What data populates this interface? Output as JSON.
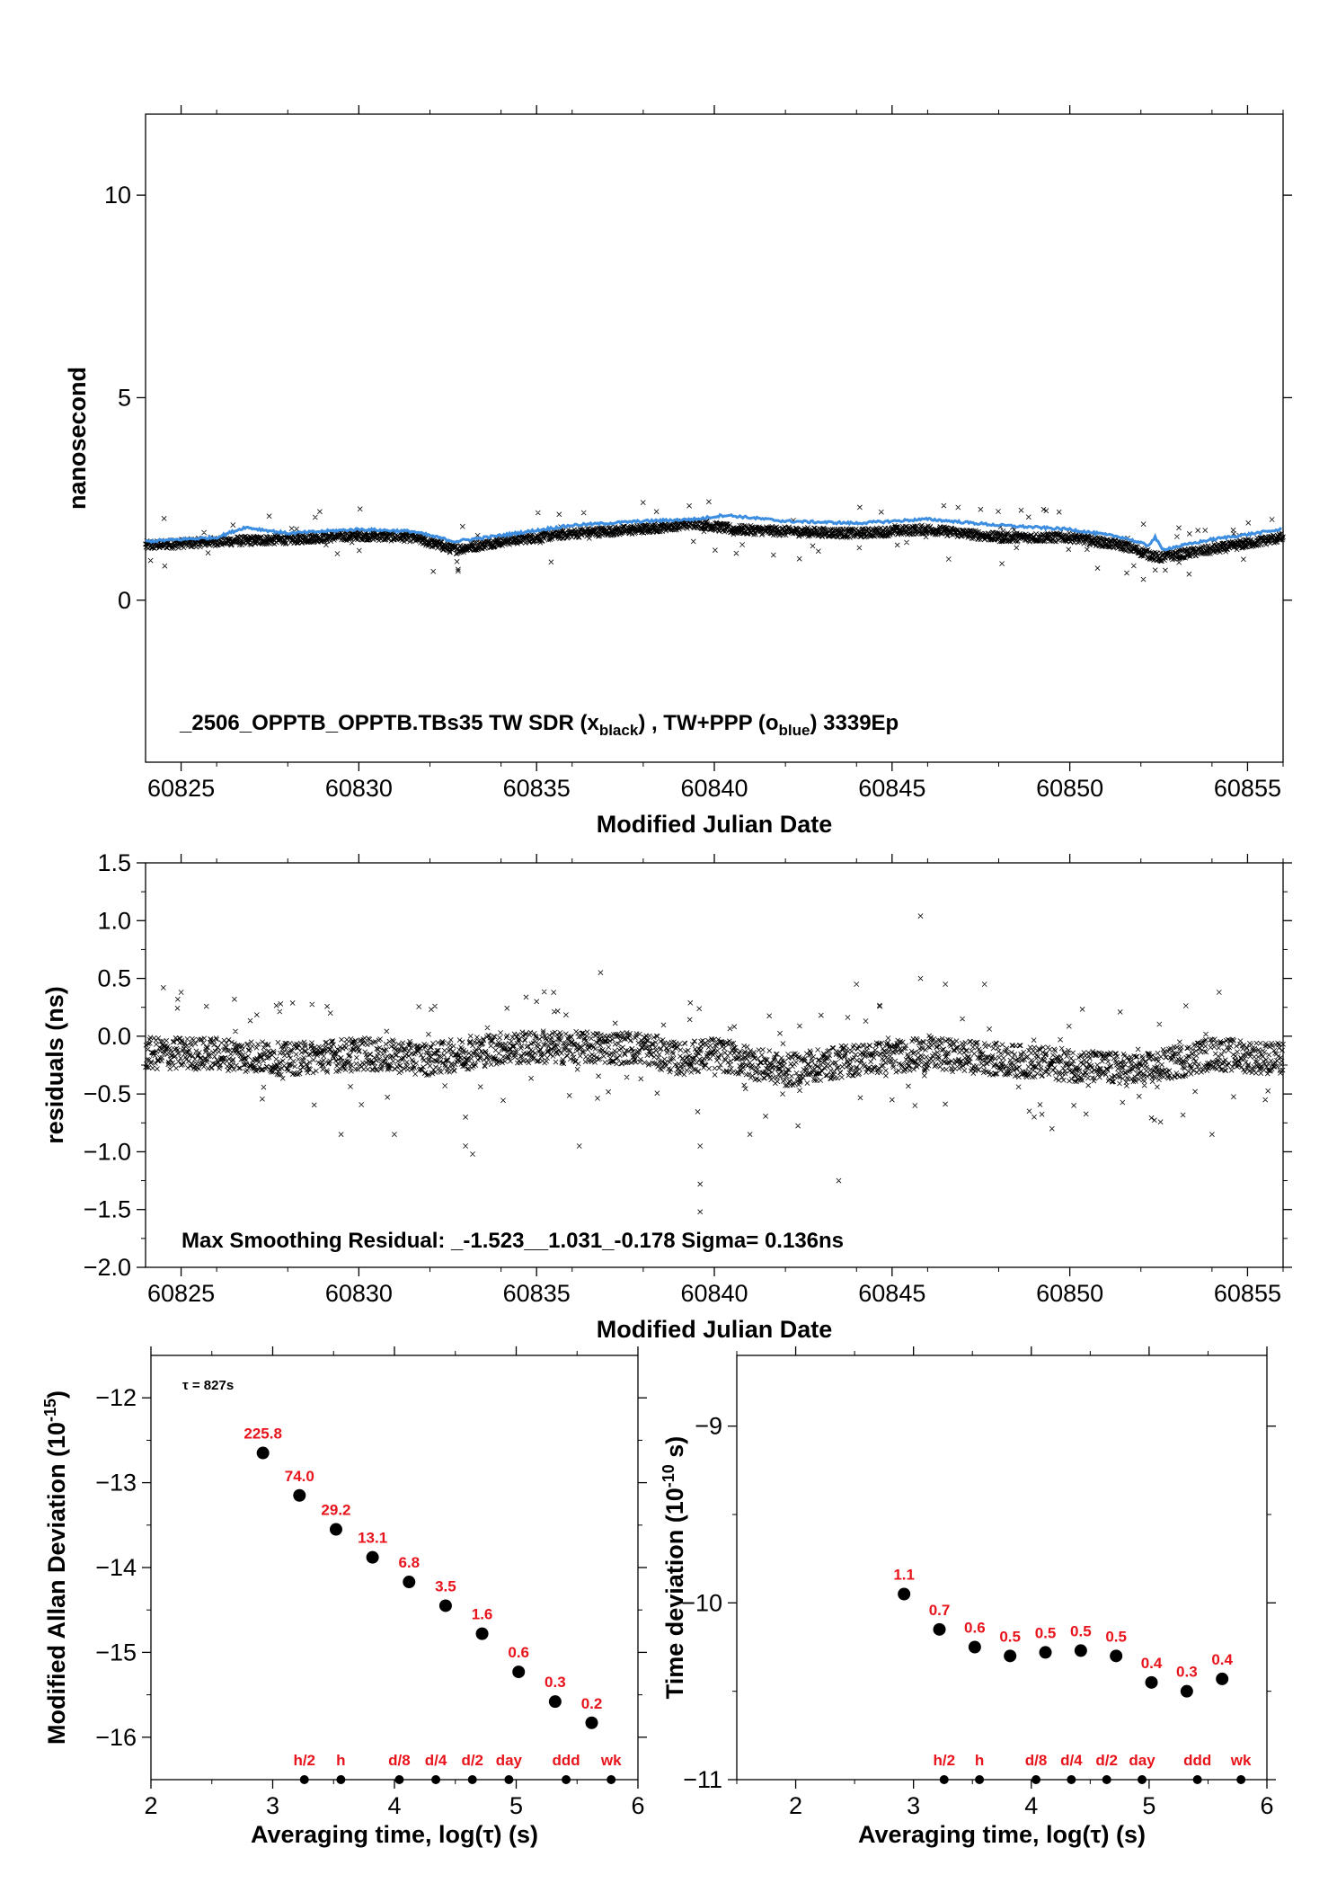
{
  "chart_data": [
    {
      "type": "scatter",
      "xlabel": "Modified Julian Date",
      "ylabel": "nanosecond",
      "xlim": [
        60824,
        60856
      ],
      "ylim": [
        -4,
        12
      ],
      "xticks": [
        60825,
        60830,
        60835,
        60840,
        60845,
        60850,
        60855
      ],
      "yticks": [
        0,
        5,
        10
      ],
      "annotation": {
        "prefix": "_2506_OPPTB_OPPTB.TBs35     TW SDR (x",
        "sub1": "black",
        "mid": ") ,  TW+PPP (o",
        "sub2": "blue",
        "suffix": ")  3339Ep"
      },
      "series": [
        {
          "marker": "x",
          "color": "#000000",
          "trend": [
            [
              60824,
              1.35
            ],
            [
              60826,
              1.45
            ],
            [
              60828,
              1.5
            ],
            [
              60830,
              1.6
            ],
            [
              60831.5,
              1.55
            ],
            [
              60832.7,
              1.25
            ],
            [
              60834,
              1.45
            ],
            [
              60836,
              1.65
            ],
            [
              60838,
              1.75
            ],
            [
              60839.5,
              1.9
            ],
            [
              60840.5,
              1.75
            ],
            [
              60842,
              1.7
            ],
            [
              60844,
              1.65
            ],
            [
              60846,
              1.75
            ],
            [
              60848,
              1.55
            ],
            [
              60850,
              1.55
            ],
            [
              60851.5,
              1.35
            ],
            [
              60852.5,
              1.05
            ],
            [
              60854,
              1.25
            ],
            [
              60856,
              1.55
            ]
          ]
        },
        {
          "marker": "line",
          "color": "#3d8ee0",
          "trend": [
            [
              60824,
              1.45
            ],
            [
              60826,
              1.55
            ],
            [
              60826.8,
              1.8
            ],
            [
              60828,
              1.65
            ],
            [
              60830,
              1.75
            ],
            [
              60831.5,
              1.7
            ],
            [
              60832.7,
              1.45
            ],
            [
              60834,
              1.6
            ],
            [
              60836,
              1.85
            ],
            [
              60838,
              1.95
            ],
            [
              60839.5,
              2.0
            ],
            [
              60840.3,
              2.1
            ],
            [
              60842,
              1.95
            ],
            [
              60844,
              1.9
            ],
            [
              60846,
              2.0
            ],
            [
              60848,
              1.85
            ],
            [
              60850,
              1.75
            ],
            [
              60851.5,
              1.55
            ],
            [
              60852.2,
              1.35
            ],
            [
              60852.4,
              1.55
            ],
            [
              60852.6,
              1.25
            ],
            [
              60854,
              1.5
            ],
            [
              60856,
              1.75
            ]
          ]
        }
      ]
    },
    {
      "type": "scatter",
      "xlabel": "Modified Julian Date",
      "ylabel": "residuals (ns)",
      "xlim": [
        60824,
        60856
      ],
      "ylim": [
        -2.0,
        1.5
      ],
      "xticks": [
        60825,
        60830,
        60835,
        60840,
        60845,
        60850,
        60855
      ],
      "yticks": [
        1.5,
        1.0,
        0.5,
        0.0,
        -0.5,
        -1.0,
        -1.5,
        -2.0
      ],
      "yticklabels": [
        "1.5",
        "1.0",
        "0.5",
        "0.0",
        "−0.5",
        "−1.0",
        "−1.5",
        "−2.0"
      ],
      "annotation": "Max Smoothing Residual: _-1.523__1.031_-0.178  Sigma= 0.136ns",
      "trend": [
        [
          60824,
          -0.15
        ],
        [
          60826,
          -0.15
        ],
        [
          60828,
          -0.2
        ],
        [
          60830,
          -0.15
        ],
        [
          60832,
          -0.2
        ],
        [
          60834,
          -0.1
        ],
        [
          60836,
          -0.1
        ],
        [
          60838,
          -0.1
        ],
        [
          60839,
          -0.2
        ],
        [
          60840,
          -0.15
        ],
        [
          60842,
          -0.3
        ],
        [
          60844,
          -0.2
        ],
        [
          60846,
          -0.15
        ],
        [
          60848,
          -0.2
        ],
        [
          60850,
          -0.25
        ],
        [
          60852,
          -0.3
        ],
        [
          60854,
          -0.15
        ],
        [
          60856,
          -0.2
        ]
      ],
      "outliers": [
        [
          60824.5,
          0.42
        ],
        [
          60825,
          0.38
        ],
        [
          60826.5,
          0.32
        ],
        [
          60827.8,
          0.28
        ],
        [
          60829.2,
          0.2
        ],
        [
          60833.2,
          -1.02
        ],
        [
          60833,
          -0.95
        ],
        [
          60835,
          0.3
        ],
        [
          60836.2,
          -0.95
        ],
        [
          60836.8,
          0.55
        ],
        [
          60839.6,
          -1.28
        ],
        [
          60839.6,
          -1.52
        ],
        [
          60839.6,
          -0.95
        ],
        [
          60843.5,
          -1.25
        ],
        [
          60845.8,
          1.04
        ],
        [
          60845.8,
          0.5
        ],
        [
          60846.5,
          0.45
        ],
        [
          60847.6,
          0.45
        ],
        [
          60845,
          -0.55
        ],
        [
          60844,
          0.45
        ],
        [
          60849.5,
          -0.8
        ],
        [
          60854.2,
          0.38
        ],
        [
          60854,
          -0.85
        ],
        [
          60855.5,
          -0.55
        ],
        [
          60829.5,
          -0.85
        ],
        [
          60831,
          -0.85
        ],
        [
          60833,
          -0.7
        ],
        [
          60841,
          -0.85
        ]
      ]
    },
    {
      "type": "scatter",
      "xlabel": "Averaging time, log(τ) (s)",
      "ylabel": "Modified Allan Deviation (10",
      "ylabel_sup": "-15",
      "ylabel_end": ")",
      "xlim": [
        2,
        6
      ],
      "ylim": [
        -16.5,
        -11.5
      ],
      "xticks": [
        2,
        3,
        4,
        5,
        6
      ],
      "yticks": [
        -12,
        -13,
        -14,
        -15,
        -16
      ],
      "yticklabels": [
        "−12",
        "−13",
        "−14",
        "−15",
        "−16"
      ],
      "tau_label": "τ = 827s",
      "x": [
        2.92,
        3.22,
        3.52,
        3.82,
        4.12,
        4.42,
        4.72,
        5.02,
        5.32,
        5.62
      ],
      "y": [
        -12.65,
        -13.15,
        -13.55,
        -13.88,
        -14.17,
        -14.45,
        -14.78,
        -15.23,
        -15.58,
        -15.83
      ],
      "labels": [
        "225.8",
        "74.0",
        "29.2",
        "13.1",
        "6.8",
        "3.5",
        "1.6",
        "0.6",
        "0.3",
        "0.2"
      ],
      "markers": [
        {
          "label": "h/2",
          "x": 3.26
        },
        {
          "label": "h",
          "x": 3.56
        },
        {
          "label": "d/8",
          "x": 4.04
        },
        {
          "label": "d/4",
          "x": 4.34
        },
        {
          "label": "d/2",
          "x": 4.64
        },
        {
          "label": "day",
          "x": 4.94
        },
        {
          "label": "ddd",
          "x": 5.41
        },
        {
          "label": "wk",
          "x": 5.78
        }
      ]
    },
    {
      "type": "scatter",
      "xlabel": "Averaging time, log(τ) (s)",
      "ylabel": "Time deviation (10",
      "ylabel_sup": "-10",
      "ylabel_end": " s)",
      "xlim": [
        1.5,
        6
      ],
      "ylim": [
        -11,
        -8.6
      ],
      "xticks": [
        2,
        3,
        4,
        5,
        6
      ],
      "yticks": [
        -9,
        -10,
        -11
      ],
      "yticklabels": [
        "−9",
        "−10",
        "−11"
      ],
      "x": [
        2.92,
        3.22,
        3.52,
        3.82,
        4.12,
        4.42,
        4.72,
        5.02,
        5.32,
        5.62
      ],
      "y": [
        -9.95,
        -10.15,
        -10.25,
        -10.3,
        -10.28,
        -10.27,
        -10.3,
        -10.45,
        -10.5,
        -10.43
      ],
      "labels": [
        "1.1",
        "0.7",
        "0.6",
        "0.5",
        "0.5",
        "0.5",
        "0.5",
        "0.4",
        "0.3",
        "0.4"
      ],
      "markers": [
        {
          "label": "h/2",
          "x": 3.26
        },
        {
          "label": "h",
          "x": 3.56
        },
        {
          "label": "d/8",
          "x": 4.04
        },
        {
          "label": "d/4",
          "x": 4.34
        },
        {
          "label": "d/2",
          "x": 4.64
        },
        {
          "label": "day",
          "x": 4.94
        },
        {
          "label": "ddd",
          "x": 5.41
        },
        {
          "label": "wk",
          "x": 5.78
        }
      ]
    }
  ]
}
